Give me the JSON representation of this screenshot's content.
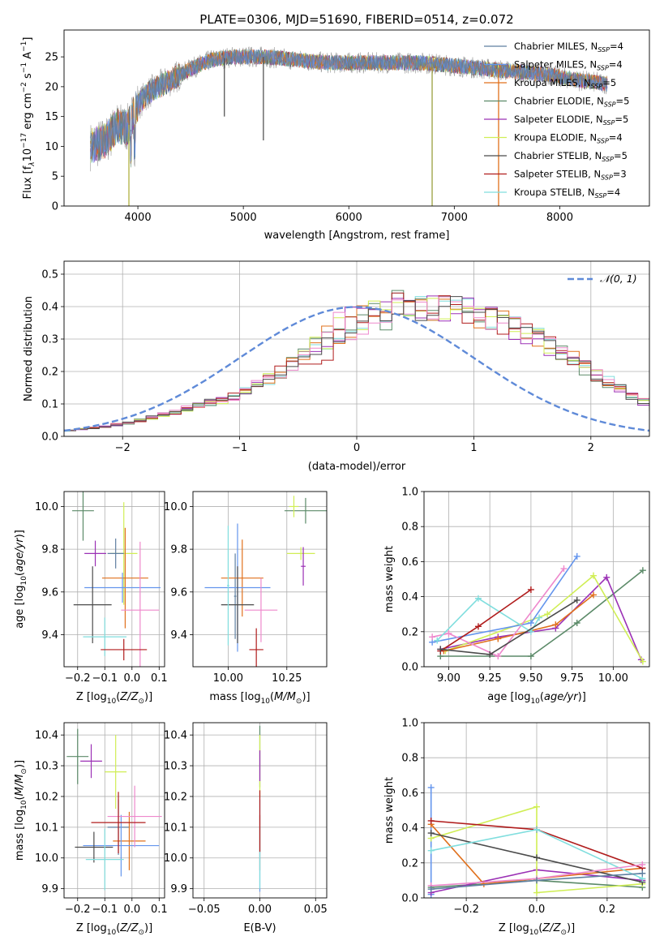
{
  "figure": {
    "title": "PLATE=0306, MJD=51690, FIBERID=0514, z=0.072"
  },
  "colors": {
    "Chabrier MILES": "#5f7fa0",
    "Salpeter MILES": "#6495ed",
    "Kroupa MILES": "#e0701c",
    "Chabrier ELODIE": "#5b8a68",
    "Salpeter ELODIE": "#9b30b5",
    "Kroupa ELODIE": "#d0ee55",
    "Chabrier STELIB": "#4b4b4b",
    "Salpeter STELIB": "#b01c1c",
    "Kroupa STELIB": "#80dede",
    "pink": "#ee88cc",
    "gaussian": "#5f8ad8",
    "grid": "#b0b0b0"
  },
  "chart_data": [
    {
      "id": "spectrum",
      "type": "line",
      "title": "PLATE=0306, MJD=51690, FIBERID=0514, z=0.072",
      "xlabel": "wavelength [Angstrom, rest frame]",
      "ylabel": "Flux [f",
      "xlim": [
        3300,
        8850
      ],
      "ylim": [
        0,
        29.5
      ],
      "xticks": [
        4000,
        5000,
        6000,
        7000,
        8000
      ],
      "yticks": [
        0,
        5,
        10,
        15,
        20,
        25
      ],
      "grid": false,
      "legend_position": "top-right",
      "continuum_knots": {
        "x": [
          3550,
          3700,
          3800,
          3900,
          4000,
          4100,
          4200,
          4300,
          4500,
          4700,
          4900,
          5200,
          5500,
          5800,
          6100,
          6400,
          6700,
          7000,
          7300,
          7600,
          7900,
          8200,
          8450
        ],
        "y": [
          10,
          11,
          13.5,
          13,
          17,
          19,
          20,
          21,
          23,
          24.5,
          25,
          25,
          24.5,
          24,
          24,
          24,
          24,
          23.5,
          23,
          22.5,
          22,
          21,
          20.5
        ]
      },
      "spikes": [
        {
          "x": 3915,
          "y": 0
        },
        {
          "x": 5190,
          "y": 11
        },
        {
          "x": 4820,
          "y": 15
        },
        {
          "x": 6790,
          "y": 0
        },
        {
          "x": 7420,
          "y": 0
        }
      ],
      "series": [
        {
          "name": "Chabrier MILES, N",
          "sub": "SSP",
          "suffix": "=4"
        },
        {
          "name": "Salpeter MILES, N",
          "sub": "SSP",
          "suffix": "=4"
        },
        {
          "name": "Kroupa MILES, N",
          "sub": "SSP",
          "suffix": "=5"
        },
        {
          "name": "Chabrier ELODIE, N",
          "sub": "SSP",
          "suffix": "=5"
        },
        {
          "name": "Salpeter ELODIE, N",
          "sub": "SSP",
          "suffix": "=5"
        },
        {
          "name": "Kroupa ELODIE, N",
          "sub": "SSP",
          "suffix": "=4"
        },
        {
          "name": "Chabrier STELIB, N",
          "sub": "SSP",
          "suffix": "=5"
        },
        {
          "name": "Salpeter STELIB, N",
          "sub": "SSP",
          "suffix": "=3"
        },
        {
          "name": "Kroupa STELIB, N",
          "sub": "SSP",
          "suffix": "=4"
        }
      ]
    },
    {
      "id": "residuals",
      "type": "bar",
      "xlabel": "(data-model)/error",
      "ylabel": "Normed distribution",
      "xlim": [
        -2.5,
        2.5
      ],
      "ylim": [
        0,
        0.54
      ],
      "xticks": [
        -2,
        -1,
        0,
        1,
        2
      ],
      "yticks": [
        0.0,
        0.1,
        0.2,
        0.3,
        0.4,
        0.5
      ],
      "grid": true,
      "legend": "𝒩(0, 1)",
      "legend_position": "top-right",
      "bin_width": 0.1,
      "bin_start": -2.5,
      "envelope": [
        0.018,
        0.022,
        0.026,
        0.031,
        0.036,
        0.042,
        0.05,
        0.058,
        0.067,
        0.076,
        0.085,
        0.095,
        0.104,
        0.113,
        0.124,
        0.14,
        0.158,
        0.176,
        0.197,
        0.22,
        0.243,
        0.265,
        0.285,
        0.305,
        0.323,
        0.34,
        0.355,
        0.368,
        0.38,
        0.39,
        0.396,
        0.4,
        0.398,
        0.393,
        0.385,
        0.375,
        0.363,
        0.35,
        0.335,
        0.32,
        0.3,
        0.28,
        0.258,
        0.236,
        0.213,
        0.19,
        0.168,
        0.147,
        0.125,
        0.105,
        0.088,
        0.074,
        0.062,
        0.052,
        0.044,
        0.037,
        0.031,
        0.026,
        0.022,
        0.018
      ]
    },
    {
      "id": "age-vs-Z",
      "type": "scatter",
      "xlabel": "Z [log",
      "ylabel": "age  [log",
      "xlim": [
        -0.25,
        0.12
      ],
      "ylim": [
        9.25,
        10.07
      ],
      "xticks": [
        -0.2,
        -0.1,
        0.0,
        0.1
      ],
      "xticklabels": [
        "−0.2",
        "−0.1",
        "0.0",
        "0.1"
      ],
      "yticks": [
        9.4,
        9.6,
        9.8,
        10.0
      ],
      "grid": true,
      "points": [
        {
          "series": "Chabrier ELODIE",
          "x": -0.18,
          "y": 9.98,
          "xerr": 0.04,
          "yerr": 0.14
        },
        {
          "series": "Kroupa ELODIE",
          "x": -0.03,
          "y": 9.78,
          "xerr": 0.05,
          "yerr": 0.24
        },
        {
          "series": "Salpeter ELODIE",
          "x": -0.135,
          "y": 9.78,
          "xerr": 0.04,
          "yerr": 0.06
        },
        {
          "series": "Chabrier MILES",
          "x": -0.06,
          "y": 9.78,
          "xerr": 0.03,
          "yerr": 0.07
        },
        {
          "series": "Kroupa MILES",
          "x": -0.025,
          "y": 9.665,
          "xerr": 0.085,
          "yerr": 0.235
        },
        {
          "series": "Salpeter MILES",
          "x": -0.035,
          "y": 9.62,
          "xerr": 0.14,
          "yerr": 0.07
        },
        {
          "series": "pink",
          "x": 0.03,
          "y": 9.515,
          "xerr": 0.07,
          "yerr": 0.32
        },
        {
          "series": "Chabrier STELIB",
          "x": -0.145,
          "y": 9.54,
          "xerr": 0.07,
          "yerr": 0.18
        },
        {
          "series": "Kroupa STELIB",
          "x": -0.1,
          "y": 9.39,
          "xerr": 0.08,
          "yerr": 0.09
        },
        {
          "series": "Salpeter STELIB",
          "x": -0.03,
          "y": 9.33,
          "xerr": 0.085,
          "yerr": 0.05
        }
      ]
    },
    {
      "id": "age-vs-mass",
      "type": "scatter",
      "xlabel": "mass [log",
      "ylabel": "",
      "xlim": [
        9.85,
        10.42
      ],
      "ylim": [
        9.25,
        10.07
      ],
      "xticks": [
        10.0,
        10.25
      ],
      "xticklabels": [
        "10.00",
        "10.25"
      ],
      "yticks": [
        9.4,
        9.6,
        9.8,
        10.0
      ],
      "grid": true,
      "points": [
        {
          "series": "Chabrier ELODIE",
          "x": 10.33,
          "y": 9.98,
          "xerr": 0.09,
          "yerr": 0.06
        },
        {
          "series": "Kroupa ELODIE",
          "x": 10.28,
          "y": 10.0,
          "xerr": 0.02,
          "yerr": 0.05
        },
        {
          "series": "Kroupa ELODIE",
          "x": 10.31,
          "y": 9.78,
          "xerr": 0.06,
          "yerr": 0.03
        },
        {
          "series": "Salpeter ELODIE",
          "x": 10.32,
          "y": 9.72,
          "xerr": 0.01,
          "yerr": 0.09
        },
        {
          "series": "Chabrier MILES",
          "x": 10.03,
          "y": 9.58,
          "xerr": 0.005,
          "yerr": 0.2
        },
        {
          "series": "Kroupa MILES",
          "x": 10.06,
          "y": 9.665,
          "xerr": 0.09,
          "yerr": 0.18
        },
        {
          "series": "Salpeter MILES",
          "x": 10.04,
          "y": 9.62,
          "xerr": 0.14,
          "yerr": 0.3
        },
        {
          "series": "pink",
          "x": 10.14,
          "y": 9.515,
          "xerr": 0.07,
          "yerr": 0.15
        },
        {
          "series": "Chabrier STELIB",
          "x": 10.04,
          "y": 9.54,
          "xerr": 0.07,
          "yerr": 0.18
        },
        {
          "series": "Kroupa STELIB",
          "x": 10.0,
          "y": 9.63,
          "xerr": 0.005,
          "yerr": 0.28
        },
        {
          "series": "Salpeter STELIB",
          "x": 10.12,
          "y": 9.33,
          "xerr": 0.03,
          "yerr": 0.1
        }
      ]
    },
    {
      "id": "massweight-vs-age",
      "type": "line",
      "xlabel": "age  [log",
      "ylabel": "mass weight",
      "xlim": [
        8.85,
        10.22
      ],
      "ylim": [
        0,
        1.0
      ],
      "xticks": [
        9.0,
        9.25,
        9.5,
        9.75,
        10.0
      ],
      "xticklabels": [
        "9.00",
        "9.25",
        "9.50",
        "9.75",
        "10.00"
      ],
      "yticks": [
        0.0,
        0.2,
        0.4,
        0.6,
        0.8,
        1.0
      ],
      "grid": true,
      "series": [
        {
          "name": "Chabrier ELODIE",
          "x": [
            8.95,
            9.5,
            9.78,
            10.18
          ],
          "y": [
            0.06,
            0.06,
            0.25,
            0.55
          ]
        },
        {
          "name": "Salpeter ELODIE",
          "x": [
            8.95,
            9.3,
            9.65,
            9.96,
            10.17
          ],
          "y": [
            0.1,
            0.17,
            0.22,
            0.51,
            0.04
          ]
        },
        {
          "name": "Kroupa ELODIE",
          "x": [
            8.98,
            9.6,
            9.88,
            10.18
          ],
          "y": [
            0.09,
            0.3,
            0.52,
            0.03
          ]
        },
        {
          "name": "Kroupa MILES",
          "x": [
            8.97,
            9.3,
            9.65,
            9.88
          ],
          "y": [
            0.09,
            0.16,
            0.24,
            0.41
          ]
        },
        {
          "name": "Salpeter MILES",
          "x": [
            8.9,
            9.5,
            9.78
          ],
          "y": [
            0.14,
            0.25,
            0.63
          ]
        },
        {
          "name": "pink",
          "x": [
            8.9,
            9.0,
            9.3,
            9.7
          ],
          "y": [
            0.17,
            0.19,
            0.06,
            0.56
          ]
        },
        {
          "name": "Kroupa STELIB",
          "x": [
            8.93,
            9.18,
            9.5,
            9.55
          ],
          "y": [
            0.15,
            0.39,
            0.2,
            0.28
          ]
        },
        {
          "name": "Salpeter STELIB",
          "x": [
            8.95,
            9.18,
            9.5
          ],
          "y": [
            0.09,
            0.23,
            0.44
          ]
        },
        {
          "name": "Chabrier STELIB",
          "x": [
            8.95,
            9.25,
            9.78
          ],
          "y": [
            0.1,
            0.07,
            0.38
          ]
        }
      ]
    },
    {
      "id": "mass-vs-Z",
      "type": "scatter",
      "xlabel": "Z [log",
      "ylabel": "mass [log",
      "xlim": [
        -0.25,
        0.12
      ],
      "ylim": [
        9.87,
        10.44
      ],
      "xticks": [
        -0.2,
        -0.1,
        0.0,
        0.1
      ],
      "xticklabels": [
        "−0.2",
        "−0.1",
        "0.0",
        "0.1"
      ],
      "yticks": [
        9.9,
        10.0,
        10.1,
        10.2,
        10.3,
        10.4
      ],
      "grid": true,
      "points": [
        {
          "series": "Chabrier ELODIE",
          "x": -0.2,
          "y": 10.33,
          "xerr": 0.04,
          "yerr": 0.09
        },
        {
          "series": "Salpeter ELODIE",
          "x": -0.15,
          "y": 10.315,
          "xerr": 0.04,
          "yerr": 0.055
        },
        {
          "series": "Kroupa ELODIE",
          "x": -0.06,
          "y": 10.28,
          "xerr": 0.04,
          "yerr": 0.12
        },
        {
          "series": "Chabrier MILES",
          "x": -0.05,
          "y": 10.1,
          "xerr": 0.04,
          "yerr": 0.09
        },
        {
          "series": "Kroupa MILES",
          "x": -0.01,
          "y": 10.055,
          "xerr": 0.06,
          "yerr": 0.095
        },
        {
          "series": "Salpeter MILES",
          "x": -0.04,
          "y": 10.04,
          "xerr": 0.14,
          "yerr": 0.1
        },
        {
          "series": "pink",
          "x": 0.01,
          "y": 10.135,
          "xerr": 0.1,
          "yerr": 0.1
        },
        {
          "series": "Salpeter STELIB",
          "x": -0.05,
          "y": 10.115,
          "xerr": 0.1,
          "yerr": 0.1
        },
        {
          "series": "Chabrier STELIB",
          "x": -0.14,
          "y": 10.035,
          "xerr": 0.07,
          "yerr": 0.05
        },
        {
          "series": "Kroupa STELIB",
          "x": -0.1,
          "y": 9.995,
          "xerr": 0.07,
          "yerr": 0.1
        }
      ]
    },
    {
      "id": "mass-vs-EBV",
      "type": "scatter",
      "xlabel": "E(B-V)",
      "ylabel": "",
      "xlim": [
        -0.06,
        0.06
      ],
      "ylim": [
        9.87,
        10.44
      ],
      "xticks": [
        -0.05,
        0.0,
        0.05
      ],
      "xticklabels": [
        "−0.05",
        "0.00",
        "0.05"
      ],
      "yticks": [
        9.9,
        10.0,
        10.1,
        10.2,
        10.3,
        10.4
      ],
      "grid": true,
      "points": [
        {
          "series": "Chabrier ELODIE",
          "x": 0.0,
          "y": 10.33,
          "xerr": 0,
          "yerr": 0.1
        },
        {
          "series": "Kroupa ELODIE",
          "x": 0.0,
          "y": 10.3,
          "xerr": 0,
          "yerr": 0.1
        },
        {
          "series": "Salpeter ELODIE",
          "x": 0.0,
          "y": 10.3,
          "xerr": 0,
          "yerr": 0.05
        },
        {
          "series": "Kroupa MILES",
          "x": 0.0,
          "y": 10.05,
          "xerr": 0,
          "yerr": 0.09
        },
        {
          "series": "Salpeter MILES",
          "x": 0.0,
          "y": 10.04,
          "xerr": 0,
          "yerr": 0.15
        },
        {
          "series": "Kroupa STELIB",
          "x": 0.0,
          "y": 10.0,
          "xerr": 0,
          "yerr": 0.1
        },
        {
          "series": "Salpeter STELIB",
          "x": 0.0,
          "y": 10.12,
          "xerr": 0,
          "yerr": 0.1
        }
      ]
    },
    {
      "id": "massweight-vs-Z",
      "type": "line",
      "xlabel": "Z [log",
      "ylabel": "mass weight",
      "xlim": [
        -0.32,
        0.32
      ],
      "ylim": [
        0,
        1.0
      ],
      "xticks": [
        -0.2,
        0.0,
        0.2
      ],
      "xticklabels": [
        "−0.2",
        "0.0",
        "0.2"
      ],
      "yticks": [
        0.0,
        0.2,
        0.4,
        0.6,
        0.8,
        1.0
      ],
      "grid": true,
      "series": [
        {
          "name": "Salpeter MILES",
          "x": [
            -0.3,
            -0.3
          ],
          "y": [
            0.63,
            0.02
          ]
        },
        {
          "name": "Chabrier ELODIE",
          "x": [
            -0.3,
            0.0,
            0.3
          ],
          "y": [
            0.06,
            0.1,
            0.06
          ]
        },
        {
          "name": "Salpeter ELODIE",
          "x": [
            -0.3,
            0.0,
            0.3
          ],
          "y": [
            0.03,
            0.16,
            0.1
          ]
        },
        {
          "name": "Kroupa ELODIE",
          "x": [
            -0.3,
            0.0,
            0.0,
            0.3
          ],
          "y": [
            0.34,
            0.52,
            0.03,
            0.08
          ]
        },
        {
          "name": "Kroupa MILES",
          "x": [
            -0.3,
            -0.15,
            0.3
          ],
          "y": [
            0.42,
            0.08,
            0.17
          ]
        },
        {
          "name": "Salpeter STELIB",
          "x": [
            -0.3,
            0.0,
            0.3
          ],
          "y": [
            0.44,
            0.39,
            0.17
          ]
        },
        {
          "name": "Chabrier STELIB",
          "x": [
            -0.3,
            0.0,
            0.3
          ],
          "y": [
            0.37,
            0.23,
            0.09
          ]
        },
        {
          "name": "Kroupa STELIB",
          "x": [
            -0.3,
            0.0,
            0.3
          ],
          "y": [
            0.27,
            0.39,
            0.11
          ]
        },
        {
          "name": "pink",
          "x": [
            -0.3,
            0.0,
            0.3
          ],
          "y": [
            0.07,
            0.11,
            0.19
          ]
        },
        {
          "name": "Chabrier MILES",
          "x": [
            -0.3,
            0.0,
            0.3
          ],
          "y": [
            0.05,
            0.1,
            0.14
          ]
        }
      ]
    }
  ]
}
